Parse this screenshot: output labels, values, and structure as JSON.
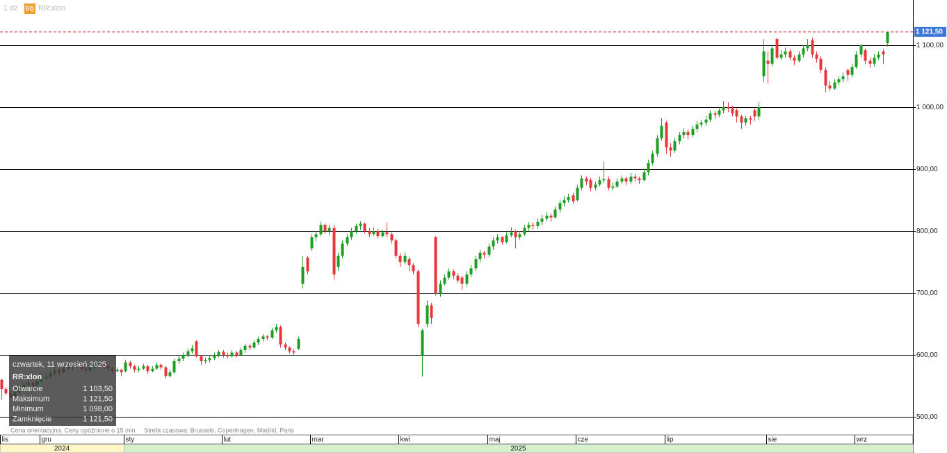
{
  "chart_data": {
    "type": "candlestick",
    "header": {
      "interval": "1 dz",
      "badge": "EQ",
      "symbol": "RR:xlon"
    },
    "note": "Cena orientacyjna. Ceny opóźnione o 15 min     Strefa czasowa: Brussels, Copenhagen, Madrid, Paris",
    "tooltip": {
      "date": "czwartek, 11 wrzesień 2025",
      "symbol": "RR:xlon",
      "rows": [
        [
          "Otwarcie",
          "1 103,50"
        ],
        [
          "Maksimum",
          "1 121,50"
        ],
        [
          "Minimum",
          "1 098,00"
        ],
        [
          "Zamknięcie",
          "1 121,50"
        ]
      ]
    },
    "up_color": "#1f9e24",
    "down_color": "#e8373c",
    "last_price": {
      "value": 1121.5,
      "label": "1 121,50"
    },
    "last_price_color": "#d33",
    "ylim": [
      471,
      1173
    ],
    "yticks": [
      {
        "value": 500,
        "label": "500,00"
      },
      {
        "value": 600,
        "label": "600,00"
      },
      {
        "value": 700,
        "label": "700,00"
      },
      {
        "value": 800,
        "label": "800,00"
      },
      {
        "value": 900,
        "label": "900,00"
      },
      {
        "value": 1000,
        "label": "1 000,00"
      },
      {
        "value": 1100,
        "label": "1 100,00"
      }
    ],
    "grid": true,
    "year_bands": [
      {
        "label": "2024",
        "from": 0
      },
      {
        "label": "2025",
        "from": 28
      }
    ],
    "categories": [
      "lis",
      null,
      null,
      null,
      null,
      null,
      null,
      null,
      null,
      "gru",
      null,
      null,
      null,
      null,
      null,
      null,
      null,
      null,
      null,
      null,
      null,
      null,
      null,
      null,
      null,
      null,
      null,
      null,
      "sty",
      null,
      null,
      null,
      null,
      null,
      null,
      null,
      null,
      null,
      null,
      null,
      null,
      null,
      null,
      null,
      null,
      null,
      null,
      null,
      null,
      null,
      "lut",
      null,
      null,
      null,
      null,
      null,
      null,
      null,
      null,
      null,
      null,
      null,
      null,
      null,
      null,
      null,
      null,
      null,
      null,
      null,
      "mar",
      null,
      null,
      null,
      null,
      null,
      null,
      null,
      null,
      null,
      null,
      null,
      null,
      null,
      null,
      null,
      null,
      null,
      null,
      null,
      "kwi",
      null,
      null,
      null,
      null,
      null,
      null,
      null,
      null,
      null,
      null,
      null,
      null,
      null,
      null,
      null,
      null,
      null,
      null,
      null,
      "maj",
      null,
      null,
      null,
      null,
      null,
      null,
      null,
      null,
      null,
      null,
      null,
      null,
      null,
      null,
      null,
      null,
      null,
      null,
      null,
      "cze",
      null,
      null,
      null,
      null,
      null,
      null,
      null,
      null,
      null,
      null,
      null,
      null,
      null,
      null,
      null,
      null,
      null,
      null,
      null,
      "lip",
      null,
      null,
      null,
      null,
      null,
      null,
      null,
      null,
      null,
      null,
      null,
      null,
      null,
      null,
      null,
      null,
      null,
      null,
      null,
      null,
      null,
      null,
      "sie",
      null,
      null,
      null,
      null,
      null,
      null,
      null,
      null,
      null,
      null,
      null,
      null,
      null,
      null,
      null,
      null,
      null,
      null,
      null,
      "wrz",
      null,
      null,
      null,
      null,
      null,
      null,
      null
    ],
    "candles": [
      [
        560,
        562,
        528,
        545
      ],
      [
        545,
        548,
        535,
        538
      ],
      [
        538,
        542,
        528,
        532
      ],
      [
        532,
        544,
        530,
        540
      ],
      [
        540,
        550,
        536,
        548
      ],
      [
        548,
        556,
        544,
        552
      ],
      [
        552,
        560,
        548,
        555
      ],
      [
        555,
        558,
        545,
        550
      ],
      [
        550,
        562,
        548,
        558
      ],
      [
        558,
        566,
        555,
        562
      ],
      [
        562,
        570,
        558,
        565
      ],
      [
        565,
        574,
        562,
        570
      ],
      [
        570,
        580,
        566,
        575
      ],
      [
        575,
        578,
        566,
        572
      ],
      [
        572,
        582,
        570,
        578
      ],
      [
        578,
        586,
        575,
        582
      ],
      [
        582,
        585,
        574,
        580
      ],
      [
        580,
        590,
        578,
        585
      ],
      [
        585,
        588,
        574,
        578
      ],
      [
        578,
        582,
        570,
        575
      ],
      [
        575,
        584,
        572,
        580
      ],
      [
        580,
        588,
        578,
        584
      ],
      [
        584,
        592,
        580,
        588
      ],
      [
        588,
        590,
        578,
        582
      ],
      [
        582,
        585,
        574,
        578
      ],
      [
        578,
        580,
        570,
        574
      ],
      [
        574,
        580,
        572,
        576
      ],
      [
        576,
        578,
        566,
        572
      ],
      [
        574,
        592,
        572,
        588
      ],
      [
        588,
        590,
        578,
        582
      ],
      [
        582,
        584,
        572,
        576
      ],
      [
        576,
        582,
        572,
        578
      ],
      [
        578,
        586,
        576,
        582
      ],
      [
        582,
        584,
        570,
        574
      ],
      [
        574,
        582,
        572,
        578
      ],
      [
        578,
        588,
        576,
        584
      ],
      [
        584,
        586,
        576,
        580
      ],
      [
        580,
        582,
        562,
        566
      ],
      [
        566,
        576,
        564,
        572
      ],
      [
        572,
        594,
        570,
        590
      ],
      [
        590,
        598,
        586,
        594
      ],
      [
        594,
        604,
        590,
        600
      ],
      [
        600,
        610,
        596,
        606
      ],
      [
        606,
        616,
        602,
        611
      ],
      [
        622,
        624,
        596,
        598
      ],
      [
        598,
        600,
        584,
        590
      ],
      [
        590,
        596,
        586,
        592
      ],
      [
        592,
        600,
        588,
        595
      ],
      [
        595,
        604,
        592,
        600
      ],
      [
        600,
        608,
        596,
        605
      ],
      [
        605,
        608,
        596,
        600
      ],
      [
        600,
        604,
        594,
        598
      ],
      [
        598,
        608,
        596,
        604
      ],
      [
        604,
        606,
        596,
        600
      ],
      [
        600,
        612,
        598,
        608
      ],
      [
        608,
        618,
        604,
        615
      ],
      [
        615,
        618,
        608,
        612
      ],
      [
        612,
        624,
        610,
        620
      ],
      [
        620,
        630,
        616,
        626
      ],
      [
        626,
        634,
        622,
        630
      ],
      [
        630,
        632,
        624,
        628
      ],
      [
        628,
        644,
        626,
        640
      ],
      [
        640,
        650,
        636,
        645
      ],
      [
        645,
        648,
        612,
        617
      ],
      [
        617,
        620,
        608,
        612
      ],
      [
        612,
        614,
        602,
        606
      ],
      [
        606,
        610,
        600,
        604
      ],
      [
        610,
        630,
        608,
        626
      ],
      [
        715,
        760,
        708,
        742
      ],
      [
        757,
        760,
        730,
        735
      ],
      [
        772,
        795,
        768,
        790
      ],
      [
        790,
        800,
        784,
        795
      ],
      [
        795,
        815,
        792,
        810
      ],
      [
        810,
        812,
        796,
        800
      ],
      [
        800,
        810,
        794,
        805
      ],
      [
        805,
        810,
        722,
        730
      ],
      [
        742,
        765,
        736,
        760
      ],
      [
        760,
        785,
        756,
        780
      ],
      [
        780,
        795,
        776,
        790
      ],
      [
        790,
        805,
        786,
        800
      ],
      [
        800,
        812,
        796,
        808
      ],
      [
        808,
        816,
        802,
        812
      ],
      [
        812,
        814,
        796,
        800
      ],
      [
        800,
        805,
        790,
        795
      ],
      [
        795,
        806,
        792,
        800
      ],
      [
        800,
        804,
        788,
        792
      ],
      [
        792,
        802,
        790,
        798
      ],
      [
        798,
        814,
        790,
        795
      ],
      [
        795,
        798,
        780,
        785
      ],
      [
        785,
        788,
        756,
        760
      ],
      [
        760,
        764,
        742,
        750
      ],
      [
        750,
        766,
        746,
        760
      ],
      [
        755,
        758,
        735,
        745
      ],
      [
        745,
        748,
        730,
        735
      ],
      [
        735,
        738,
        645,
        650
      ],
      [
        600,
        642,
        565,
        640
      ],
      [
        650,
        688,
        645,
        680
      ],
      [
        680,
        684,
        650,
        660
      ],
      [
        790,
        792,
        696,
        700
      ],
      [
        700,
        720,
        694,
        715
      ],
      [
        715,
        730,
        712,
        725
      ],
      [
        725,
        740,
        722,
        735
      ],
      [
        735,
        738,
        722,
        728
      ],
      [
        728,
        732,
        716,
        720
      ],
      [
        725,
        728,
        705,
        715
      ],
      [
        715,
        735,
        710,
        730
      ],
      [
        730,
        745,
        726,
        740
      ],
      [
        740,
        760,
        736,
        755
      ],
      [
        755,
        770,
        750,
        765
      ],
      [
        765,
        768,
        756,
        762
      ],
      [
        762,
        780,
        758,
        775
      ],
      [
        775,
        790,
        770,
        785
      ],
      [
        785,
        795,
        780,
        790
      ],
      [
        790,
        792,
        778,
        782
      ],
      [
        782,
        798,
        780,
        793
      ],
      [
        793,
        806,
        790,
        798
      ],
      [
        800,
        802,
        772,
        790
      ],
      [
        790,
        800,
        786,
        795
      ],
      [
        795,
        810,
        792,
        805
      ],
      [
        805,
        815,
        800,
        810
      ],
      [
        810,
        814,
        802,
        808
      ],
      [
        808,
        820,
        804,
        815
      ],
      [
        815,
        826,
        810,
        820
      ],
      [
        820,
        830,
        816,
        825
      ],
      [
        825,
        828,
        815,
        822
      ],
      [
        822,
        840,
        820,
        835
      ],
      [
        835,
        850,
        830,
        845
      ],
      [
        845,
        856,
        840,
        850
      ],
      [
        850,
        860,
        846,
        855
      ],
      [
        858,
        862,
        844,
        848
      ],
      [
        850,
        875,
        848,
        870
      ],
      [
        870,
        890,
        866,
        885
      ],
      [
        885,
        888,
        874,
        880
      ],
      [
        882,
        886,
        864,
        870
      ],
      [
        870,
        880,
        866,
        875
      ],
      [
        875,
        888,
        872,
        882
      ],
      [
        882,
        912,
        878,
        884
      ],
      [
        884,
        888,
        866,
        870
      ],
      [
        870,
        878,
        866,
        872
      ],
      [
        872,
        885,
        870,
        880
      ],
      [
        880,
        890,
        876,
        885
      ],
      [
        885,
        888,
        874,
        880
      ],
      [
        880,
        894,
        876,
        888
      ],
      [
        888,
        892,
        880,
        885
      ],
      [
        885,
        888,
        876,
        882
      ],
      [
        882,
        900,
        880,
        895
      ],
      [
        895,
        915,
        890,
        910
      ],
      [
        910,
        930,
        906,
        925
      ],
      [
        925,
        955,
        920,
        950
      ],
      [
        950,
        982,
        946,
        970
      ],
      [
        975,
        978,
        925,
        935
      ],
      [
        935,
        942,
        920,
        930
      ],
      [
        930,
        950,
        926,
        945
      ],
      [
        945,
        960,
        940,
        955
      ],
      [
        955,
        966,
        950,
        960
      ],
      [
        960,
        964,
        948,
        955
      ],
      [
        955,
        970,
        952,
        965
      ],
      [
        965,
        978,
        960,
        972
      ],
      [
        972,
        980,
        968,
        975
      ],
      [
        975,
        986,
        970,
        980
      ],
      [
        980,
        995,
        976,
        990
      ],
      [
        990,
        994,
        982,
        988
      ],
      [
        988,
        1000,
        984,
        995
      ],
      [
        995,
        1010,
        990,
        1000
      ],
      [
        1000,
        1008,
        992,
        998
      ],
      [
        998,
        1002,
        985,
        990
      ],
      [
        995,
        998,
        975,
        985
      ],
      [
        985,
        988,
        965,
        975
      ],
      [
        975,
        986,
        970,
        982
      ],
      [
        982,
        986,
        972,
        980
      ],
      [
        995,
        998,
        978,
        985
      ],
      [
        985,
        1008,
        980,
        1000
      ],
      [
        1050,
        1110,
        1040,
        1090
      ],
      [
        1075,
        1090,
        1038,
        1070
      ],
      [
        1070,
        1100,
        1066,
        1095
      ],
      [
        1110,
        1112,
        1078,
        1080
      ],
      [
        1080,
        1092,
        1076,
        1085
      ],
      [
        1085,
        1096,
        1080,
        1090
      ],
      [
        1090,
        1094,
        1076,
        1080
      ],
      [
        1080,
        1084,
        1068,
        1075
      ],
      [
        1075,
        1090,
        1072,
        1085
      ],
      [
        1085,
        1100,
        1080,
        1095
      ],
      [
        1095,
        1110,
        1090,
        1100
      ],
      [
        1108,
        1112,
        1080,
        1085
      ],
      [
        1085,
        1090,
        1072,
        1078
      ],
      [
        1078,
        1082,
        1055,
        1060
      ],
      [
        1060,
        1064,
        1024,
        1035
      ],
      [
        1035,
        1042,
        1026,
        1030
      ],
      [
        1030,
        1045,
        1028,
        1040
      ],
      [
        1040,
        1050,
        1036,
        1045
      ],
      [
        1045,
        1056,
        1040,
        1050
      ],
      [
        1060,
        1062,
        1042,
        1052
      ],
      [
        1052,
        1070,
        1048,
        1065
      ],
      [
        1065,
        1090,
        1062,
        1085
      ],
      [
        1085,
        1102,
        1080,
        1100
      ],
      [
        1092,
        1095,
        1070,
        1075
      ],
      [
        1075,
        1080,
        1064,
        1070
      ],
      [
        1070,
        1086,
        1066,
        1080
      ],
      [
        1080,
        1090,
        1076,
        1085
      ],
      [
        1090,
        1094,
        1070,
        1085
      ],
      [
        1103.5,
        1121.5,
        1098,
        1121.5
      ]
    ]
  }
}
